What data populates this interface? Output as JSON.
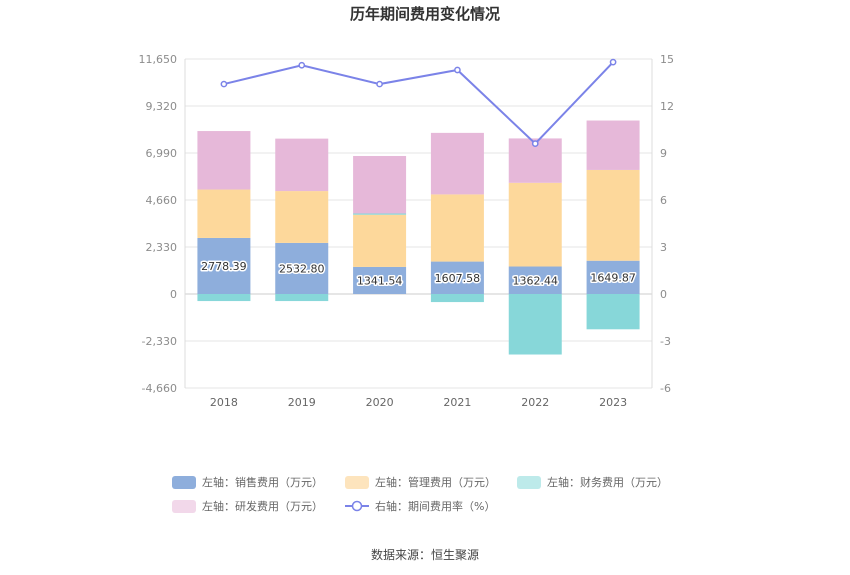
{
  "chart_data": {
    "type": "bar",
    "title": "历年期间费用变化情况",
    "source": "数据来源：恒生聚源",
    "categories": [
      "2018",
      "2019",
      "2020",
      "2021",
      "2022",
      "2023"
    ],
    "y_left": {
      "ylim": [
        -4660,
        11650
      ],
      "ticks": [
        11650,
        9320,
        6990,
        4660,
        2330,
        0,
        -2330,
        -4660
      ],
      "tick_labels": [
        "11,650",
        "9,320",
        "6,990",
        "4,660",
        "2,330",
        "0",
        "-2,330",
        "-4,660"
      ]
    },
    "y_right": {
      "ylim": [
        -6,
        15
      ],
      "ticks": [
        15,
        12,
        9,
        6,
        3,
        0,
        -3,
        -6
      ],
      "tick_labels": [
        "15",
        "12",
        "9",
        "6",
        "3",
        "0",
        "-3",
        "-6"
      ]
    },
    "series": [
      {
        "name": "左轴：销售费用（万元）",
        "axis": "left",
        "kind": "bar",
        "stack": "pos",
        "values": [
          2778.39,
          2532.8,
          1341.54,
          1607.58,
          1362.44,
          1649.87
        ],
        "value_labels": [
          "2778.39",
          "2532.80",
          "1341.54",
          "1607.58",
          "1362.44",
          "1649.87"
        ],
        "color": "#8eaedc",
        "legend_color": "#8eaedc"
      },
      {
        "name": "左轴：管理费用（万元）",
        "axis": "left",
        "kind": "bar",
        "stack": "pos",
        "values": [
          2400,
          2570,
          2590,
          3330,
          4150,
          4500
        ],
        "color": "#fdd89b",
        "legend_color": "#fde4bd"
      },
      {
        "name": "左轴：财务费用（万元）",
        "axis": "left",
        "kind": "bar",
        "stack": "pos",
        "values": [
          -350,
          -350,
          60,
          -400,
          -3000,
          -1750
        ],
        "color": "#87d7d9",
        "legend_color": "#bdeaea"
      },
      {
        "name": "左轴：研发费用（万元）",
        "axis": "left",
        "kind": "bar",
        "stack": "pos",
        "values": [
          2900,
          2600,
          2850,
          3050,
          2200,
          2450
        ],
        "color": "#e6b8d9",
        "legend_color": "#f2d8ea"
      },
      {
        "name": "右轴：期间费用率（%）",
        "axis": "right",
        "kind": "line",
        "values": [
          13.4,
          14.6,
          13.4,
          14.3,
          9.6,
          14.8
        ],
        "color": "#7b83e8"
      }
    ],
    "legend_position": "bottom",
    "grid": true
  }
}
